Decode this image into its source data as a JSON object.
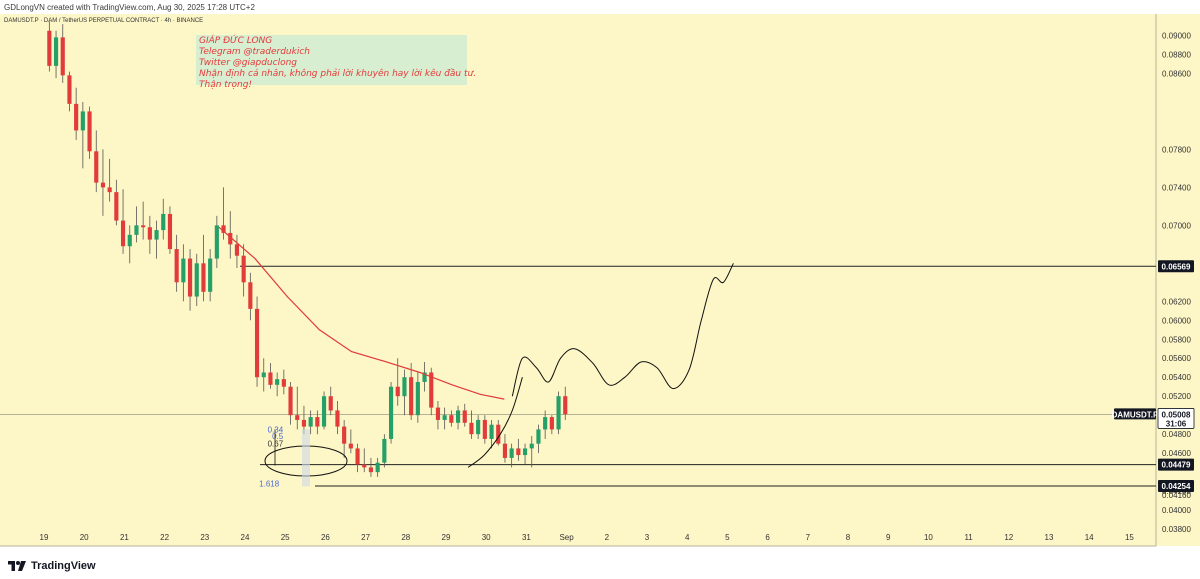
{
  "caption": "GDLongVN created with TradingView.com, Aug 30, 2025 17:28 UTC+2",
  "symbol_line": "DAMUSDT.P · DAM / TetherUS PERPETUAL CONTRACT · 4h · BINANCE",
  "note": {
    "lines": [
      "GIÁP ĐỨC LONG",
      "Telegram @traderdukich",
      "Twitter @giapduclong",
      "Nhận định cá nhân, không phải lời khuyên hay lời kêu đầu tư.",
      "Thận trọng!"
    ]
  },
  "footer": {
    "brand": "TradingView",
    "logo_icon": "tradingview-logo-icon"
  },
  "colors": {
    "background": "#fdf6c6",
    "up": "#26a069",
    "down": "#e23b3b",
    "ma_line": "#e03a3a",
    "level_line": "#222222",
    "fib_text": "#4a6ad0"
  },
  "chart_data": {
    "type": "candlestick",
    "title": "",
    "xlabel": "",
    "ylabel": "",
    "symbol": "DAMUSDT.P",
    "timeframe": "4h",
    "ylim": [
      0.0378,
      0.091
    ],
    "x_ticks": [
      "19",
      "20",
      "21",
      "22",
      "23",
      "24",
      "25",
      "26",
      "27",
      "28",
      "29",
      "30",
      "31",
      "Sep",
      "2",
      "3",
      "4",
      "5",
      "6",
      "7",
      "8",
      "9",
      "10",
      "11",
      "12",
      "13",
      "14",
      "15"
    ],
    "y_ticks": [
      "0.09000",
      "0.08800",
      "0.08600",
      "0.07800",
      "0.07400",
      "0.07000",
      "0.06200",
      "0.06000",
      "0.05800",
      "0.05600",
      "0.05400",
      "0.05200",
      "0.04800",
      "0.04600",
      "0.04200",
      "0.04160",
      "0.04000",
      "0.03800"
    ],
    "candles_start_day": 19,
    "candles_per_day": 6,
    "candles": [
      {
        "o": 0.0905,
        "h": 0.0915,
        "l": 0.0862,
        "c": 0.0868
      },
      {
        "o": 0.0868,
        "h": 0.0905,
        "l": 0.0855,
        "c": 0.0898
      },
      {
        "o": 0.0898,
        "h": 0.0912,
        "l": 0.085,
        "c": 0.0858
      },
      {
        "o": 0.0858,
        "h": 0.0862,
        "l": 0.082,
        "c": 0.0828
      },
      {
        "o": 0.0828,
        "h": 0.0845,
        "l": 0.079,
        "c": 0.08
      },
      {
        "o": 0.08,
        "h": 0.083,
        "l": 0.076,
        "c": 0.082
      },
      {
        "o": 0.082,
        "h": 0.0825,
        "l": 0.077,
        "c": 0.0778
      },
      {
        "o": 0.0778,
        "h": 0.08,
        "l": 0.0735,
        "c": 0.0745
      },
      {
        "o": 0.0745,
        "h": 0.078,
        "l": 0.071,
        "c": 0.074
      },
      {
        "o": 0.074,
        "h": 0.077,
        "l": 0.0725,
        "c": 0.0735
      },
      {
        "o": 0.0735,
        "h": 0.0748,
        "l": 0.07,
        "c": 0.0705
      },
      {
        "o": 0.0705,
        "h": 0.0738,
        "l": 0.067,
        "c": 0.0678
      },
      {
        "o": 0.0678,
        "h": 0.07,
        "l": 0.066,
        "c": 0.069
      },
      {
        "o": 0.069,
        "h": 0.072,
        "l": 0.0682,
        "c": 0.07
      },
      {
        "o": 0.07,
        "h": 0.0725,
        "l": 0.0685,
        "c": 0.0698
      },
      {
        "o": 0.0698,
        "h": 0.071,
        "l": 0.067,
        "c": 0.0685
      },
      {
        "o": 0.0685,
        "h": 0.0705,
        "l": 0.0665,
        "c": 0.0695
      },
      {
        "o": 0.0695,
        "h": 0.0728,
        "l": 0.0685,
        "c": 0.0712
      },
      {
        "o": 0.0712,
        "h": 0.072,
        "l": 0.067,
        "c": 0.0675
      },
      {
        "o": 0.0675,
        "h": 0.069,
        "l": 0.063,
        "c": 0.064
      },
      {
        "o": 0.064,
        "h": 0.068,
        "l": 0.062,
        "c": 0.0665
      },
      {
        "o": 0.0665,
        "h": 0.0675,
        "l": 0.061,
        "c": 0.0625
      },
      {
        "o": 0.0625,
        "h": 0.067,
        "l": 0.0615,
        "c": 0.066
      },
      {
        "o": 0.066,
        "h": 0.069,
        "l": 0.062,
        "c": 0.063
      },
      {
        "o": 0.063,
        "h": 0.0675,
        "l": 0.062,
        "c": 0.0665
      },
      {
        "o": 0.0665,
        "h": 0.071,
        "l": 0.0655,
        "c": 0.07
      },
      {
        "o": 0.07,
        "h": 0.074,
        "l": 0.0685,
        "c": 0.0692
      },
      {
        "o": 0.0692,
        "h": 0.0715,
        "l": 0.0665,
        "c": 0.068
      },
      {
        "o": 0.068,
        "h": 0.069,
        "l": 0.0655,
        "c": 0.0668
      },
      {
        "o": 0.0668,
        "h": 0.068,
        "l": 0.0625,
        "c": 0.064
      },
      {
        "o": 0.064,
        "h": 0.065,
        "l": 0.06,
        "c": 0.0612
      },
      {
        "o": 0.0612,
        "h": 0.0625,
        "l": 0.053,
        "c": 0.054
      },
      {
        "o": 0.054,
        "h": 0.056,
        "l": 0.0525,
        "c": 0.0545
      },
      {
        "o": 0.0545,
        "h": 0.0555,
        "l": 0.0528,
        "c": 0.0532
      },
      {
        "o": 0.0532,
        "h": 0.0545,
        "l": 0.052,
        "c": 0.0538
      },
      {
        "o": 0.0538,
        "h": 0.0548,
        "l": 0.0522,
        "c": 0.053
      },
      {
        "o": 0.053,
        "h": 0.0535,
        "l": 0.049,
        "c": 0.05
      },
      {
        "o": 0.05,
        "h": 0.053,
        "l": 0.0485,
        "c": 0.0495
      },
      {
        "o": 0.0495,
        "h": 0.051,
        "l": 0.048,
        "c": 0.0488
      },
      {
        "o": 0.0488,
        "h": 0.0505,
        "l": 0.048,
        "c": 0.0498
      },
      {
        "o": 0.0498,
        "h": 0.0505,
        "l": 0.048,
        "c": 0.0488
      },
      {
        "o": 0.0488,
        "h": 0.0525,
        "l": 0.0485,
        "c": 0.052
      },
      {
        "o": 0.052,
        "h": 0.053,
        "l": 0.05,
        "c": 0.0505
      },
      {
        "o": 0.0505,
        "h": 0.0515,
        "l": 0.048,
        "c": 0.0488
      },
      {
        "o": 0.0488,
        "h": 0.0495,
        "l": 0.0455,
        "c": 0.047
      },
      {
        "o": 0.047,
        "h": 0.0485,
        "l": 0.046,
        "c": 0.0465
      },
      {
        "o": 0.0465,
        "h": 0.047,
        "l": 0.044,
        "c": 0.0448
      },
      {
        "o": 0.0448,
        "h": 0.0465,
        "l": 0.044,
        "c": 0.0445
      },
      {
        "o": 0.0445,
        "h": 0.0455,
        "l": 0.0435,
        "c": 0.044
      },
      {
        "o": 0.044,
        "h": 0.0455,
        "l": 0.0435,
        "c": 0.045
      },
      {
        "o": 0.045,
        "h": 0.048,
        "l": 0.0445,
        "c": 0.0475
      },
      {
        "o": 0.0475,
        "h": 0.0535,
        "l": 0.047,
        "c": 0.053
      },
      {
        "o": 0.053,
        "h": 0.056,
        "l": 0.051,
        "c": 0.052
      },
      {
        "o": 0.052,
        "h": 0.0548,
        "l": 0.05,
        "c": 0.054
      },
      {
        "o": 0.054,
        "h": 0.0555,
        "l": 0.0495,
        "c": 0.05
      },
      {
        "o": 0.05,
        "h": 0.0545,
        "l": 0.0492,
        "c": 0.0535
      },
      {
        "o": 0.0535,
        "h": 0.0556,
        "l": 0.0525,
        "c": 0.0545
      },
      {
        "o": 0.0545,
        "h": 0.055,
        "l": 0.05,
        "c": 0.0508
      },
      {
        "o": 0.0508,
        "h": 0.0515,
        "l": 0.0485,
        "c": 0.0495
      },
      {
        "o": 0.0495,
        "h": 0.0508,
        "l": 0.0485,
        "c": 0.05
      },
      {
        "o": 0.05,
        "h": 0.0505,
        "l": 0.0488,
        "c": 0.0492
      },
      {
        "o": 0.0492,
        "h": 0.051,
        "l": 0.0485,
        "c": 0.0505
      },
      {
        "o": 0.0505,
        "h": 0.0512,
        "l": 0.0488,
        "c": 0.0492
      },
      {
        "o": 0.0492,
        "h": 0.0505,
        "l": 0.0475,
        "c": 0.048
      },
      {
        "o": 0.048,
        "h": 0.05,
        "l": 0.0475,
        "c": 0.0495
      },
      {
        "o": 0.0495,
        "h": 0.05,
        "l": 0.047,
        "c": 0.0475
      },
      {
        "o": 0.0475,
        "h": 0.0495,
        "l": 0.0465,
        "c": 0.049
      },
      {
        "o": 0.049,
        "h": 0.0495,
        "l": 0.0468,
        "c": 0.047
      },
      {
        "o": 0.047,
        "h": 0.048,
        "l": 0.045,
        "c": 0.0455
      },
      {
        "o": 0.0455,
        "h": 0.047,
        "l": 0.0445,
        "c": 0.0465
      },
      {
        "o": 0.0465,
        "h": 0.0475,
        "l": 0.0452,
        "c": 0.0458
      },
      {
        "o": 0.0458,
        "h": 0.047,
        "l": 0.0448,
        "c": 0.0465
      },
      {
        "o": 0.0465,
        "h": 0.0478,
        "l": 0.0445,
        "c": 0.047
      },
      {
        "o": 0.047,
        "h": 0.049,
        "l": 0.046,
        "c": 0.0485
      },
      {
        "o": 0.0485,
        "h": 0.0505,
        "l": 0.0475,
        "c": 0.0498
      },
      {
        "o": 0.0498,
        "h": 0.05,
        "l": 0.048,
        "c": 0.0485
      },
      {
        "o": 0.0485,
        "h": 0.0525,
        "l": 0.048,
        "c": 0.052
      },
      {
        "o": 0.052,
        "h": 0.053,
        "l": 0.0495,
        "c": 0.0501
      }
    ],
    "moving_average": {
      "points": [
        {
          "day": 23.3,
          "value": 0.0698
        },
        {
          "day": 24.2,
          "value": 0.0665
        },
        {
          "day": 25.0,
          "value": 0.0625
        },
        {
          "day": 25.8,
          "value": 0.059
        },
        {
          "day": 26.6,
          "value": 0.0567
        },
        {
          "day": 27.4,
          "value": 0.0557
        },
        {
          "day": 28.3,
          "value": 0.0545
        },
        {
          "day": 29.1,
          "value": 0.0532
        },
        {
          "day": 29.8,
          "value": 0.0522
        },
        {
          "day": 30.4,
          "value": 0.0517
        }
      ]
    },
    "horizontal_levels": [
      {
        "price": 0.06569,
        "label": "0.06569"
      },
      {
        "price": 0.04479,
        "label": "0.04479"
      },
      {
        "price": 0.04254,
        "label": "0.04254"
      }
    ],
    "current_price": {
      "price": 0.05008,
      "label": "0.05008",
      "symbol": "DAMUSDT.P",
      "countdown": "31:06"
    },
    "fib_labels": [
      {
        "text": "0.34",
        "price": 0.0485,
        "day": 25.0
      },
      {
        "text": "0.5",
        "price": 0.0478,
        "day": 25.0
      },
      {
        "text": "0.67",
        "price": 0.047,
        "day": 25.0
      },
      {
        "text": "1.618",
        "price": 0.0428,
        "day": 24.9
      }
    ],
    "projection_path": [
      {
        "day": 30.6,
        "value": 0.052
      },
      {
        "day": 30.85,
        "value": 0.056
      },
      {
        "day": 31.2,
        "value": 0.055
      },
      {
        "day": 31.5,
        "value": 0.0535
      },
      {
        "day": 31.8,
        "value": 0.056
      },
      {
        "day": 32.15,
        "value": 0.057
      },
      {
        "day": 32.6,
        "value": 0.0555
      },
      {
        "day": 33.0,
        "value": 0.0532
      },
      {
        "day": 33.4,
        "value": 0.054
      },
      {
        "day": 33.8,
        "value": 0.0556
      },
      {
        "day": 34.2,
        "value": 0.055
      },
      {
        "day": 34.6,
        "value": 0.0528
      },
      {
        "day": 35.0,
        "value": 0.0548
      },
      {
        "day": 35.3,
        "value": 0.06
      },
      {
        "day": 35.6,
        "value": 0.0643
      },
      {
        "day": 35.85,
        "value": 0.064
      },
      {
        "day": 36.1,
        "value": 0.066
      }
    ],
    "curve_path": [
      {
        "day": 29.5,
        "value": 0.0445
      },
      {
        "day": 29.9,
        "value": 0.0458
      },
      {
        "day": 30.3,
        "value": 0.048
      },
      {
        "day": 30.6,
        "value": 0.0505
      },
      {
        "day": 30.85,
        "value": 0.054
      }
    ]
  }
}
